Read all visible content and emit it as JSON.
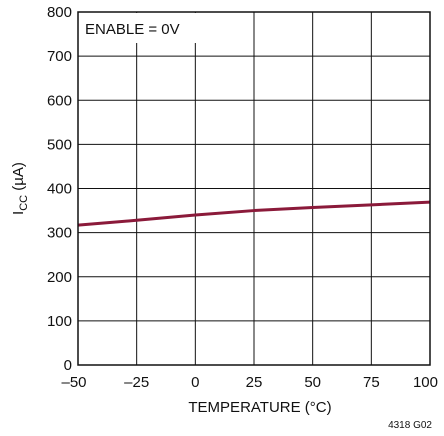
{
  "chart_data": {
    "type": "line",
    "title": "",
    "xlabel": "TEMPERATURE (°C)",
    "ylabel_main": "I",
    "ylabel_sub": "CC",
    "ylabel_rest": " (µA)",
    "xlim": [
      -50,
      100
    ],
    "ylim": [
      0,
      800
    ],
    "xticks": [
      -50,
      -25,
      0,
      25,
      50,
      75,
      100
    ],
    "xtick_labels": [
      "–50",
      "–25",
      "0",
      "25",
      "50",
      "75",
      "100"
    ],
    "yticks": [
      0,
      100,
      200,
      300,
      400,
      500,
      600,
      700,
      800
    ],
    "ytick_labels": [
      "0",
      "100",
      "200",
      "300",
      "400",
      "500",
      "600",
      "700",
      "800"
    ],
    "grid": true,
    "annotation": "ENABLE = 0V",
    "figure_id": "4318 G02",
    "series": [
      {
        "color": "#8b1a3a",
        "x": [
          -50,
          -25,
          0,
          25,
          50,
          75,
          100
        ],
        "y": [
          317,
          328,
          340,
          350,
          357,
          363,
          369
        ]
      }
    ]
  }
}
